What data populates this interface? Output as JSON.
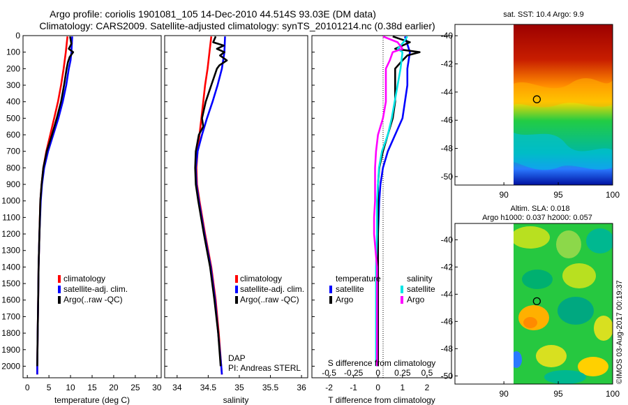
{
  "title_line1": "Argo profile: coriolis 1901081_105 14-Dec-2010 44.514S 93.03E (DM data)",
  "title_line2": "Climatology: CARS2009. Satellite-adjusted climatology: synTS_20101214.nc (0.38d earlier)",
  "footer_stamp": "©IMOS 03-Aug-2017 00:19:37",
  "colors": {
    "climatology": "#ff0000",
    "satellite": "#0000ff",
    "argo": "#000000",
    "s_satellite": "#00e5e5",
    "s_argo": "#ff00ff"
  },
  "chart_data": [
    {
      "id": "temperature",
      "type": "line",
      "xlabel": "temperature (deg C)",
      "ylabel": "",
      "xlim": [
        -1,
        31
      ],
      "ylim": [
        2070,
        0
      ],
      "xticks": [
        0,
        5,
        10,
        15,
        20,
        25,
        30
      ],
      "yticks": [
        0,
        100,
        200,
        300,
        400,
        500,
        600,
        700,
        800,
        900,
        1000,
        1100,
        1200,
        1300,
        1400,
        1500,
        1600,
        1700,
        1800,
        1900,
        2000
      ],
      "legend": [
        "climatology",
        "satellite-adj. clim.",
        "Argo(..raw -QC)"
      ],
      "series": [
        {
          "name": "climatology",
          "color": "#ff0000",
          "depth": [
            5,
            100,
            200,
            300,
            400,
            500,
            600,
            700,
            800,
            900,
            1000,
            1200,
            1400,
            1600,
            1800,
            2000,
            2050
          ],
          "values": [
            9.3,
            8.9,
            8.4,
            7.8,
            7.1,
            6.2,
            5.3,
            4.4,
            3.7,
            3.3,
            3.0,
            2.8,
            2.6,
            2.5,
            2.4,
            2.3,
            2.3
          ]
        },
        {
          "name": "satellite-adj. clim.",
          "color": "#0000ff",
          "depth": [
            5,
            100,
            150,
            200,
            300,
            400,
            500,
            600,
            700,
            800,
            900,
            1000,
            1200,
            1400,
            1600,
            1800,
            2000,
            2050
          ],
          "values": [
            10.4,
            10.2,
            10.0,
            9.6,
            9.0,
            8.2,
            7.2,
            6.0,
            4.8,
            3.9,
            3.4,
            3.1,
            2.8,
            2.6,
            2.5,
            2.4,
            2.3,
            2.3
          ]
        },
        {
          "name": "Argo(..raw -QC)",
          "color": "#000000",
          "depth": [
            5,
            50,
            80,
            100,
            130,
            160,
            200,
            300,
            400,
            500,
            600,
            700,
            800,
            900,
            1000,
            1200,
            1400,
            1600,
            1800,
            2000
          ],
          "values": [
            9.9,
            10.2,
            9.6,
            10.6,
            9.8,
            9.4,
            9.1,
            8.5,
            7.8,
            6.8,
            5.7,
            4.5,
            3.7,
            3.3,
            3.0,
            2.8,
            2.6,
            2.5,
            2.4,
            2.3
          ]
        }
      ]
    },
    {
      "id": "salinity",
      "type": "line",
      "xlabel": "salinity",
      "ylabel": "",
      "xlim": [
        33.8,
        36.1
      ],
      "ylim": [
        2070,
        0
      ],
      "xticks": [
        34,
        34.5,
        35,
        35.5,
        36
      ],
      "legend": [
        "climatology",
        "satellite-adj. clim.",
        "Argo(..raw -QC)"
      ],
      "annotation": [
        "DAP",
        "PI: Andreas STERL"
      ],
      "series": [
        {
          "name": "climatology",
          "color": "#ff0000",
          "depth": [
            5,
            100,
            200,
            300,
            400,
            500,
            600,
            700,
            800,
            900,
            1000,
            1200,
            1400,
            1600,
            1800,
            2000,
            2050
          ],
          "values": [
            34.55,
            34.52,
            34.49,
            34.45,
            34.42,
            34.39,
            34.36,
            34.33,
            34.31,
            34.32,
            34.36,
            34.45,
            34.55,
            34.62,
            34.67,
            34.71,
            34.72
          ]
        },
        {
          "name": "satellite-adj. clim.",
          "color": "#0000ff",
          "depth": [
            5,
            100,
            200,
            300,
            400,
            500,
            600,
            700,
            800,
            900,
            1000,
            1200,
            1400,
            1600,
            1800,
            2000,
            2050
          ],
          "values": [
            34.77,
            34.76,
            34.72,
            34.65,
            34.57,
            34.48,
            34.4,
            34.33,
            34.3,
            34.31,
            34.35,
            34.44,
            34.54,
            34.61,
            34.66,
            34.71,
            34.72
          ]
        },
        {
          "name": "Argo(..raw -QC)",
          "color": "#000000",
          "depth": [
            5,
            40,
            60,
            80,
            100,
            120,
            150,
            180,
            200,
            300,
            400,
            500,
            550,
            600,
            700,
            800,
            900,
            1000,
            1200,
            1400,
            1600,
            1800,
            2000
          ],
          "values": [
            34.62,
            34.58,
            34.75,
            34.64,
            34.76,
            34.69,
            34.8,
            34.68,
            34.64,
            34.55,
            34.46,
            34.4,
            34.42,
            34.35,
            34.3,
            34.29,
            34.3,
            34.34,
            34.43,
            34.53,
            34.6,
            34.66,
            34.7
          ]
        }
      ]
    },
    {
      "id": "difference",
      "type": "line",
      "xlabel": "T difference from climatology",
      "xlabel2": "S difference from climatology",
      "xlim": [
        -2.7,
        3.0
      ],
      "ylim": [
        2070,
        0
      ],
      "xticks": [
        -2,
        -1,
        0,
        1,
        2
      ],
      "xticks2": [
        -0.5,
        -0.25,
        0,
        0.25,
        0.5
      ],
      "legend_groups": {
        "temperature": [
          "satellite",
          "Argo"
        ],
        "salinity": [
          "satellite",
          "Argo"
        ]
      },
      "series": [
        {
          "name": "temperature satellite",
          "color": "#0000ff",
          "depth": [
            5,
            100,
            200,
            300,
            400,
            500,
            600,
            700,
            800,
            900,
            1000,
            1200,
            1400,
            1600,
            1800,
            2000
          ],
          "values": [
            1.1,
            1.3,
            1.2,
            1.2,
            1.1,
            1.0,
            0.7,
            0.4,
            0.2,
            0.1,
            0.05,
            0.0,
            0.0,
            0.0,
            0.0,
            0.0
          ]
        },
        {
          "name": "temperature Argo",
          "color": "#000000",
          "depth": [
            5,
            40,
            80,
            100,
            120,
            150,
            200,
            300,
            400,
            500,
            600,
            700,
            800,
            900,
            1000,
            1200,
            1400,
            1600,
            1800,
            2000
          ],
          "values": [
            0.6,
            1.3,
            0.7,
            1.7,
            1.2,
            1.0,
            0.7,
            0.7,
            0.7,
            0.6,
            0.4,
            0.2,
            0.05,
            0.0,
            0.0,
            0.0,
            0.0,
            0.0,
            0.0,
            0.0
          ]
        },
        {
          "name": "salinity satellite",
          "color": "#00e5e5",
          "depth": [
            5,
            40,
            80,
            100,
            200,
            300,
            400,
            500,
            600,
            700,
            800,
            900,
            1000,
            1200,
            1400,
            1600,
            1800,
            2000
          ],
          "values": [
            0.3,
            0.26,
            0.2,
            0.25,
            0.23,
            0.2,
            0.17,
            0.14,
            0.1,
            0.04,
            0.01,
            0.0,
            -0.01,
            -0.01,
            -0.02,
            -0.02,
            -0.02,
            -0.02
          ]
        },
        {
          "name": "salinity Argo",
          "color": "#ff00ff",
          "depth": [
            5,
            40,
            80,
            100,
            150,
            200,
            300,
            400,
            500,
            600,
            700,
            800,
            900,
            1000,
            1100,
            1200,
            1400,
            1600,
            1800,
            2000
          ],
          "values": [
            0.05,
            0.2,
            0.25,
            0.15,
            0.12,
            0.08,
            0.08,
            0.08,
            0.05,
            0.0,
            -0.02,
            -0.03,
            -0.03,
            -0.03,
            -0.04,
            -0.04,
            -0.01,
            -0.01,
            -0.01,
            -0.01
          ]
        }
      ]
    },
    {
      "id": "sst-map",
      "type": "heatmap",
      "title": "sat. SST: 10.4  Argo: 9.9",
      "xticks": [
        90,
        95,
        100
      ],
      "yticks": [
        -40,
        -42,
        -44,
        -46,
        -48,
        -50
      ],
      "xlim": [
        85.5,
        100
      ],
      "ylim": [
        -50.6,
        -39.2
      ],
      "marker": {
        "lon": 93.03,
        "lat": -44.514
      }
    },
    {
      "id": "sla-map",
      "type": "heatmap",
      "title": "Altim. SLA: 0.018",
      "subtitle": "Argo h1000: 0.037  h2000: 0.057",
      "xticks": [
        90,
        95,
        100
      ],
      "yticks": [
        -40,
        -42,
        -44,
        -46,
        -48,
        -50
      ],
      "xlim": [
        85.5,
        100
      ],
      "ylim": [
        -50.6,
        -38.8
      ],
      "marker": {
        "lon": 93.03,
        "lat": -44.514
      }
    }
  ]
}
